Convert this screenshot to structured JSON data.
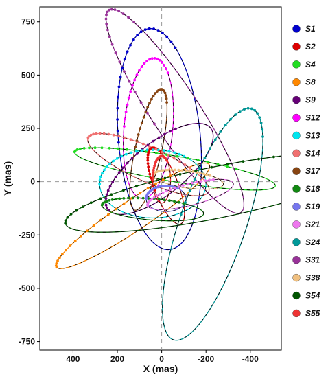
{
  "chart_data": {
    "type": "line",
    "title": "",
    "xlabel": "X (mas)",
    "ylabel": "Y (mas)",
    "xlim": [
      550,
      -540
    ],
    "ylim": [
      -790,
      820
    ],
    "x_inverted": true,
    "xticks": [
      400,
      200,
      0,
      -200,
      -400
    ],
    "xtick_labels": [
      "400",
      "200",
      "0",
      "-200",
      "-400"
    ],
    "yticks": [
      750,
      500,
      250,
      0,
      -250,
      -500,
      -750
    ],
    "ytick_labels": [
      "750",
      "500",
      "250",
      "0",
      "-250",
      "-500",
      "-750"
    ],
    "grid": false,
    "zero_lines": true,
    "legend_position": "right",
    "series": [
      {
        "name": "S1",
        "color": "#0000cc",
        "orbit": {
          "cx": 10,
          "cy": 200,
          "rx": 185,
          "ry": 520,
          "rot": -5
        }
      },
      {
        "name": "S2",
        "color": "#dd0000",
        "orbit": {
          "cx": -20,
          "cy": -20,
          "rx": 55,
          "ry": 190,
          "rot": -20
        }
      },
      {
        "name": "S4",
        "color": "#22dd22",
        "orbit": {
          "cx": -60,
          "cy": 60,
          "rx": 460,
          "ry": 60,
          "rot": 10
        }
      },
      {
        "name": "S8",
        "color": "#ff8800",
        "orbit": {
          "cx": 130,
          "cy": -160,
          "rx": 420,
          "ry": 70,
          "rot": -35
        }
      },
      {
        "name": "S9",
        "color": "#660077",
        "orbit": {
          "cx": 10,
          "cy": 60,
          "rx": 300,
          "ry": 120,
          "rot": -40
        }
      },
      {
        "name": "S12",
        "color": "#ff00ff",
        "orbit": {
          "cx": 60,
          "cy": 250,
          "rx": 110,
          "ry": 330,
          "rot": 5
        }
      },
      {
        "name": "S13",
        "color": "#00e5ee",
        "orbit": {
          "cx": 40,
          "cy": -10,
          "rx": 240,
          "ry": 160,
          "rot": 0
        }
      },
      {
        "name": "S14",
        "color": "#f07070",
        "orbit": {
          "cx": 60,
          "cy": 80,
          "rx": 300,
          "ry": 80,
          "rot": 25
        }
      },
      {
        "name": "S17",
        "color": "#884411",
        "orbit": {
          "cx": 60,
          "cy": 150,
          "rx": 60,
          "ry": 290,
          "rot": 12
        }
      },
      {
        "name": "S18",
        "color": "#118811",
        "orbit": {
          "cx": 40,
          "cy": -130,
          "rx": 230,
          "ry": 50,
          "rot": 5
        }
      },
      {
        "name": "S19",
        "color": "#7777ee",
        "orbit": {
          "cx": -20,
          "cy": -80,
          "rx": 90,
          "ry": 60,
          "rot": 0
        }
      },
      {
        "name": "S21",
        "color": "#ee77ee",
        "orbit": {
          "cx": -130,
          "cy": -60,
          "rx": 200,
          "ry": 50,
          "rot": -15
        }
      },
      {
        "name": "S24",
        "color": "#009999",
        "orbit": {
          "cx": -230,
          "cy": -200,
          "rx": 150,
          "ry": 570,
          "rot": 18
        }
      },
      {
        "name": "S31",
        "color": "#993399",
        "orbit": {
          "cx": -60,
          "cy": 330,
          "rx": 110,
          "ry": 560,
          "rot": -32
        }
      },
      {
        "name": "S38",
        "color": "#f0c080",
        "orbit": {
          "cx": -120,
          "cy": 10,
          "rx": 160,
          "ry": 40,
          "rot": 8
        }
      },
      {
        "name": "S54",
        "color": "#005500",
        "orbit": {
          "cx": -250,
          "cy": -50,
          "rx": 700,
          "ry": 120,
          "rot": -12
        }
      },
      {
        "name": "S55",
        "color": "#ee3333",
        "orbit": {
          "cx": 0,
          "cy": 10,
          "rx": 40,
          "ry": 110,
          "rot": 0
        }
      }
    ]
  }
}
